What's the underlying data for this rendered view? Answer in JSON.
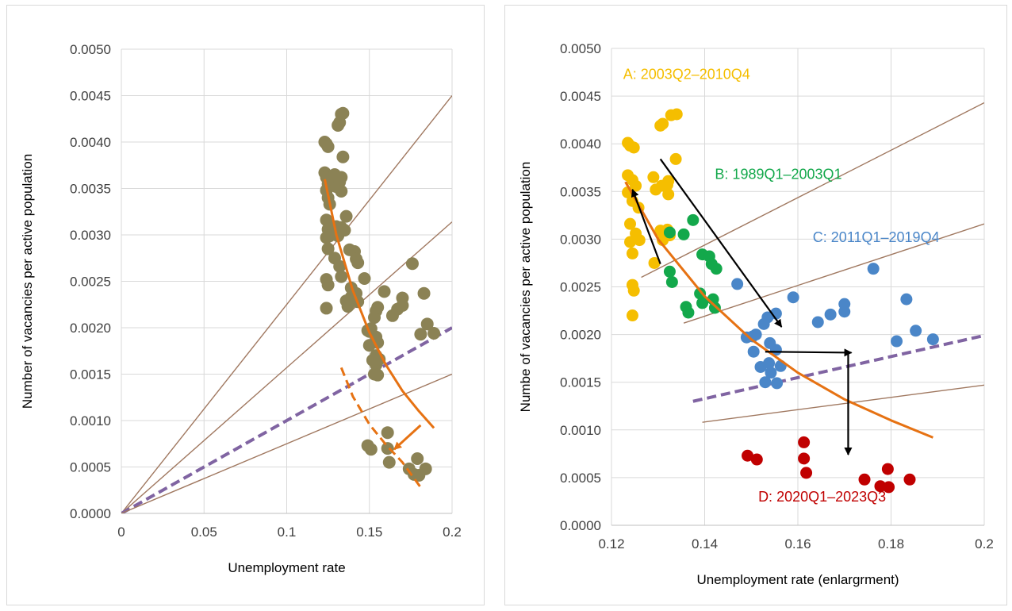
{
  "charts": [
    {
      "type": "scatter",
      "xlabel": "Unemployment rate",
      "ylabel": "Number of vacancies per active population",
      "xlim": [
        0,
        0.2
      ],
      "ylim": [
        0,
        0.005
      ],
      "xticks": [
        "0",
        "0.05",
        "0.1",
        "0.15",
        "0.2"
      ],
      "yticks": [
        "0.0000",
        "0.0005",
        "0.0010",
        "0.0015",
        "0.0020",
        "0.0025",
        "0.0030",
        "0.0035",
        "0.0040",
        "0.0045",
        "0.0050"
      ],
      "grid": true,
      "point_color": "#8b8255",
      "points": [
        [
          0.123,
          0.004
        ],
        [
          0.124,
          0.00398
        ],
        [
          0.125,
          0.00395
        ],
        [
          0.131,
          0.00418
        ],
        [
          0.132,
          0.00421
        ],
        [
          0.133,
          0.0043
        ],
        [
          0.134,
          0.00431
        ],
        [
          0.134,
          0.00384
        ],
        [
          0.123,
          0.00367
        ],
        [
          0.124,
          0.00348
        ],
        [
          0.124,
          0.00362
        ],
        [
          0.125,
          0.00355
        ],
        [
          0.125,
          0.0034
        ],
        [
          0.126,
          0.00333
        ],
        [
          0.129,
          0.00365
        ],
        [
          0.13,
          0.00352
        ],
        [
          0.131,
          0.00356
        ],
        [
          0.132,
          0.00357
        ],
        [
          0.133,
          0.00362
        ],
        [
          0.133,
          0.00347
        ],
        [
          0.124,
          0.00316
        ],
        [
          0.125,
          0.00306
        ],
        [
          0.126,
          0.00299
        ],
        [
          0.124,
          0.00297
        ],
        [
          0.13,
          0.00309
        ],
        [
          0.131,
          0.00299
        ],
        [
          0.132,
          0.00304
        ],
        [
          0.133,
          0.00308
        ],
        [
          0.125,
          0.00285
        ],
        [
          0.129,
          0.00275
        ],
        [
          0.124,
          0.00252
        ],
        [
          0.125,
          0.00246
        ],
        [
          0.124,
          0.00221
        ],
        [
          0.132,
          0.00266
        ],
        [
          0.133,
          0.00255
        ],
        [
          0.135,
          0.00305
        ],
        [
          0.136,
          0.0032
        ],
        [
          0.138,
          0.00284
        ],
        [
          0.139,
          0.00243
        ],
        [
          0.139,
          0.00233
        ],
        [
          0.141,
          0.00282
        ],
        [
          0.142,
          0.00274
        ],
        [
          0.142,
          0.00237
        ],
        [
          0.143,
          0.0027
        ],
        [
          0.143,
          0.00228
        ],
        [
          0.136,
          0.00229
        ],
        [
          0.137,
          0.00223
        ],
        [
          0.147,
          0.00253
        ],
        [
          0.149,
          0.00197
        ],
        [
          0.15,
          0.00196
        ],
        [
          0.15,
          0.00181
        ],
        [
          0.151,
          0.00199
        ],
        [
          0.152,
          0.00165
        ],
        [
          0.153,
          0.00211
        ],
        [
          0.153,
          0.0015
        ],
        [
          0.154,
          0.00218
        ],
        [
          0.154,
          0.0019
        ],
        [
          0.154,
          0.0017
        ],
        [
          0.154,
          0.0016
        ],
        [
          0.155,
          0.00222
        ],
        [
          0.155,
          0.00184
        ],
        [
          0.155,
          0.00149
        ],
        [
          0.156,
          0.00166
        ],
        [
          0.159,
          0.00239
        ],
        [
          0.164,
          0.00213
        ],
        [
          0.167,
          0.0022
        ],
        [
          0.17,
          0.00232
        ],
        [
          0.17,
          0.00224
        ],
        [
          0.176,
          0.00269
        ],
        [
          0.181,
          0.00193
        ],
        [
          0.183,
          0.00237
        ],
        [
          0.185,
          0.00204
        ],
        [
          0.189,
          0.00194
        ],
        [
          0.149,
          0.00073
        ],
        [
          0.151,
          0.00069
        ],
        [
          0.161,
          0.00087
        ],
        [
          0.161,
          0.0007
        ],
        [
          0.162,
          0.00055
        ],
        [
          0.174,
          0.00048
        ],
        [
          0.177,
          0.00042
        ],
        [
          0.179,
          0.00059
        ],
        [
          0.18,
          0.00041
        ],
        [
          0.184,
          0.00048
        ]
      ],
      "lines_from_origin": [
        {
          "slope": 0.0225,
          "color": "#a07860",
          "style": "solid"
        },
        {
          "slope": 0.0157,
          "color": "#a07860",
          "style": "solid"
        },
        {
          "slope": 0.01,
          "color": "#8064a2",
          "style": "dashed"
        },
        {
          "slope": 0.0075,
          "color": "#a07860",
          "style": "solid"
        }
      ],
      "curves": [
        {
          "color": "#e67213",
          "style": "solid",
          "points": [
            [
              0.123,
              0.0036
            ],
            [
              0.13,
              0.003
            ],
            [
              0.14,
              0.0024
            ],
            [
              0.15,
              0.00195
            ],
            [
              0.16,
              0.0016
            ],
            [
              0.17,
              0.00132
            ],
            [
              0.18,
              0.0011
            ],
            [
              0.189,
              0.00092
            ]
          ]
        },
        {
          "color": "#e67213",
          "style": "dashed",
          "points": [
            [
              0.133,
              0.00157
            ],
            [
              0.14,
              0.00126
            ],
            [
              0.15,
              0.00096
            ],
            [
              0.16,
              0.00074
            ],
            [
              0.17,
              0.00055
            ],
            [
              0.181,
              0.00028
            ]
          ]
        }
      ],
      "arrows": [
        {
          "color": "#e67213",
          "from": [
            0.181,
            0.00095
          ],
          "to": [
            0.165,
            0.00069
          ]
        }
      ]
    },
    {
      "type": "scatter",
      "xlabel": "Unemployment rate (enlargrment)",
      "ylabel": "Numbe of vacancies per active population",
      "xlim": [
        0.12,
        0.2
      ],
      "ylim": [
        0,
        0.005
      ],
      "xticks": [
        "0.12",
        "0.14",
        "0.16",
        "0.18",
        "0.2"
      ],
      "yticks": [
        "0.0000",
        "0.0005",
        "0.0010",
        "0.0015",
        "0.0020",
        "0.0025",
        "0.0030",
        "0.0035",
        "0.0040",
        "0.0045",
        "0.0050"
      ],
      "grid": true,
      "groups": [
        {
          "label": "A: 2003Q2–2010Q4",
          "color": "#f5be00",
          "label_at": [
            0.1225,
            0.00468
          ],
          "points": [
            [
              0.1235,
              0.00401
            ],
            [
              0.124,
              0.00398
            ],
            [
              0.1248,
              0.00396
            ],
            [
              0.1305,
              0.00419
            ],
            [
              0.131,
              0.00421
            ],
            [
              0.1328,
              0.0043
            ],
            [
              0.134,
              0.00431
            ],
            [
              0.1338,
              0.00384
            ],
            [
              0.1235,
              0.00367
            ],
            [
              0.1235,
              0.00349
            ],
            [
              0.1245,
              0.00362
            ],
            [
              0.1252,
              0.00356
            ],
            [
              0.1245,
              0.0034
            ],
            [
              0.1258,
              0.00333
            ],
            [
              0.129,
              0.00365
            ],
            [
              0.1295,
              0.00352
            ],
            [
              0.1308,
              0.00356
            ],
            [
              0.132,
              0.00357
            ],
            [
              0.1322,
              0.00361
            ],
            [
              0.1322,
              0.00347
            ],
            [
              0.124,
              0.00316
            ],
            [
              0.1252,
              0.00306
            ],
            [
              0.126,
              0.00299
            ],
            [
              0.124,
              0.00297
            ],
            [
              0.1305,
              0.00309
            ],
            [
              0.131,
              0.00299
            ],
            [
              0.1325,
              0.00304
            ],
            [
              0.132,
              0.0031
            ],
            [
              0.1245,
              0.00285
            ],
            [
              0.1292,
              0.00275
            ],
            [
              0.1245,
              0.00252
            ],
            [
              0.1248,
              0.00246
            ],
            [
              0.1245,
              0.0022
            ]
          ]
        },
        {
          "label": "B: 1989Q1–2003Q1",
          "color": "#13a84b",
          "label_at": [
            0.1422,
            0.00363
          ],
          "points": [
            [
              0.1325,
              0.00266
            ],
            [
              0.133,
              0.00255
            ],
            [
              0.1355,
              0.00305
            ],
            [
              0.1375,
              0.0032
            ],
            [
              0.1395,
              0.00284
            ],
            [
              0.139,
              0.00243
            ],
            [
              0.1395,
              0.00233
            ],
            [
              0.141,
              0.00282
            ],
            [
              0.1415,
              0.00274
            ],
            [
              0.1418,
              0.00237
            ],
            [
              0.1425,
              0.00269
            ],
            [
              0.1422,
              0.00228
            ],
            [
              0.136,
              0.00229
            ],
            [
              0.1365,
              0.00223
            ],
            [
              0.1325,
              0.00307
            ]
          ]
        },
        {
          "label": "C: 2011Q1–2019Q4",
          "color": "#4a86c8",
          "label_at": [
            0.1632,
            0.00297
          ],
          "points": [
            [
              0.147,
              0.00253
            ],
            [
              0.149,
              0.00197
            ],
            [
              0.1503,
              0.00198
            ],
            [
              0.1505,
              0.00182
            ],
            [
              0.151,
              0.002
            ],
            [
              0.152,
              0.00166
            ],
            [
              0.1527,
              0.00211
            ],
            [
              0.153,
              0.0015
            ],
            [
              0.1535,
              0.00218
            ],
            [
              0.154,
              0.00191
            ],
            [
              0.1538,
              0.0017
            ],
            [
              0.1542,
              0.0016
            ],
            [
              0.1553,
              0.00222
            ],
            [
              0.1553,
              0.00184
            ],
            [
              0.1555,
              0.00149
            ],
            [
              0.1563,
              0.00167
            ],
            [
              0.159,
              0.00239
            ],
            [
              0.1643,
              0.00213
            ],
            [
              0.167,
              0.00221
            ],
            [
              0.17,
              0.00232
            ],
            [
              0.17,
              0.00224
            ],
            [
              0.1762,
              0.00269
            ],
            [
              0.1812,
              0.00193
            ],
            [
              0.1833,
              0.00237
            ],
            [
              0.1853,
              0.00204
            ],
            [
              0.189,
              0.00195
            ]
          ]
        },
        {
          "label": "D: 2020Q1–2023Q3",
          "color": "#c00000",
          "label_at": [
            0.1515,
            0.00025
          ],
          "points": [
            [
              0.1492,
              0.00073
            ],
            [
              0.1512,
              0.00069
            ],
            [
              0.1613,
              0.00087
            ],
            [
              0.1613,
              0.0007
            ],
            [
              0.1618,
              0.00055
            ],
            [
              0.1743,
              0.00048
            ],
            [
              0.1777,
              0.00041
            ],
            [
              0.1793,
              0.00059
            ],
            [
              0.1795,
              0.0004
            ],
            [
              0.184,
              0.00048
            ]
          ]
        }
      ],
      "segments": [
        {
          "color": "#a07860",
          "style": "solid",
          "from": [
            0.1264,
            0.0026
          ],
          "to": [
            0.2,
            0.00443
          ]
        },
        {
          "color": "#a07860",
          "style": "solid",
          "from": [
            0.1355,
            0.00212
          ],
          "to": [
            0.2,
            0.00316
          ]
        },
        {
          "color": "#8064a2",
          "style": "dashed",
          "from": [
            0.1375,
            0.0013
          ],
          "to": [
            0.2,
            0.00199
          ]
        },
        {
          "color": "#a07860",
          "style": "solid",
          "from": [
            0.1395,
            0.00108
          ],
          "to": [
            0.2,
            0.00147
          ]
        }
      ],
      "curves": [
        {
          "color": "#e67213",
          "style": "solid",
          "points": [
            [
              0.123,
              0.0036
            ],
            [
              0.13,
              0.003
            ],
            [
              0.14,
              0.0024
            ],
            [
              0.15,
              0.00195
            ],
            [
              0.16,
              0.0016
            ],
            [
              0.17,
              0.00132
            ],
            [
              0.18,
              0.0011
            ],
            [
              0.189,
              0.00092
            ]
          ]
        }
      ],
      "arrows": [
        {
          "color": "#000000",
          "from": [
            0.1305,
            0.00274
          ],
          "to": [
            0.1245,
            0.00352
          ]
        },
        {
          "color": "#000000",
          "from": [
            0.1305,
            0.00384
          ],
          "to": [
            0.1565,
            0.00208
          ]
        },
        {
          "color": "#000000",
          "from": [
            0.153,
            0.00182
          ],
          "to": [
            0.1715,
            0.00181
          ]
        },
        {
          "color": "#000000",
          "from": [
            0.1708,
            0.00182
          ],
          "to": [
            0.1708,
            0.00074
          ]
        }
      ]
    }
  ]
}
